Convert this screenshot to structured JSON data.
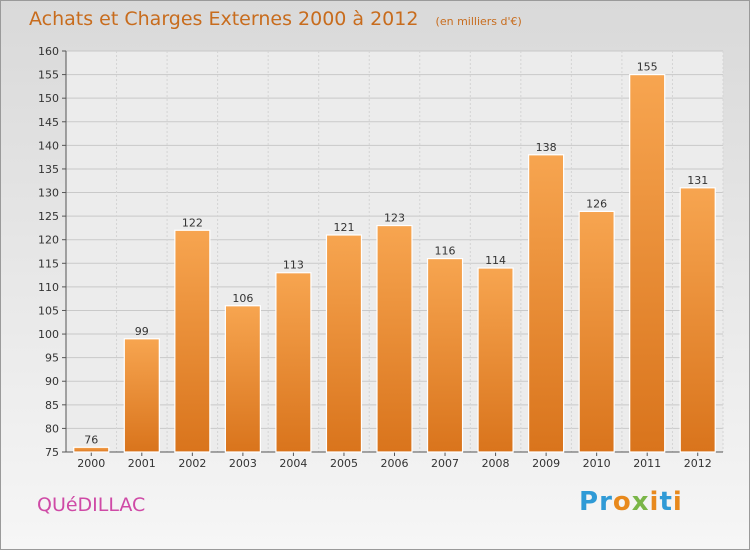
{
  "chart_data": {
    "type": "bar",
    "title": "Achats et Charges Externes 2000 à 2012",
    "subtitle": "(en milliers d'€)",
    "categories": [
      "2000",
      "2001",
      "2002",
      "2003",
      "2004",
      "2005",
      "2006",
      "2007",
      "2008",
      "2009",
      "2010",
      "2011",
      "2012"
    ],
    "values": [
      76,
      99,
      122,
      106,
      113,
      121,
      123,
      116,
      114,
      138,
      126,
      155,
      131
    ],
    "ylim": [
      75,
      160
    ],
    "yticks": [
      75,
      80,
      85,
      90,
      95,
      100,
      105,
      110,
      115,
      120,
      125,
      130,
      135,
      140,
      145,
      150,
      155,
      160
    ],
    "grid": true,
    "bar_color": "#f0902c",
    "title_color": "#c86c1d"
  },
  "footer": {
    "city": "QUéDILLAC",
    "city_color": "#cf4aa6",
    "brand_letters": [
      {
        "ch": "P",
        "color": "#2f9ad6"
      },
      {
        "ch": "r",
        "color": "#2f9ad6"
      },
      {
        "ch": "o",
        "color": "#e8891c"
      },
      {
        "ch": "x",
        "color": "#7ab648"
      },
      {
        "ch": "i",
        "color": "#e8891c"
      },
      {
        "ch": "t",
        "color": "#2f9ad6"
      },
      {
        "ch": "i",
        "color": "#e8891c"
      }
    ]
  }
}
